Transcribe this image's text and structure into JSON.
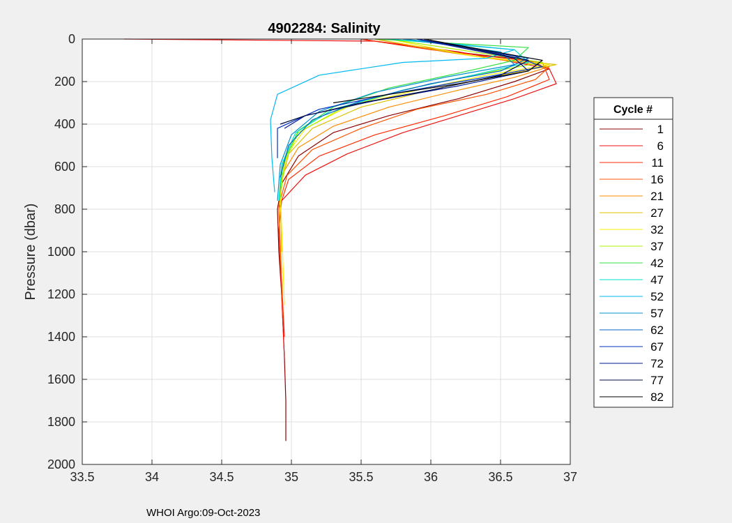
{
  "chart_data": {
    "type": "line",
    "title": "4902284:  Salinity",
    "xlabel": "",
    "ylabel": "Pressure (dbar)",
    "xlim": [
      33.5,
      37
    ],
    "ylim": [
      0,
      2000
    ],
    "y_reversed": true,
    "grid": true,
    "xticks": [
      "33.5",
      "34",
      "34.5",
      "35",
      "35.5",
      "36",
      "36.5",
      "37"
    ],
    "yticks": [
      "0",
      "200",
      "400",
      "600",
      "800",
      "1000",
      "1200",
      "1400",
      "1600",
      "1800",
      "2000"
    ],
    "legend": {
      "title": "Cycle #",
      "placement": "right-outside",
      "entries": [
        {
          "label": "1",
          "color": "#8b0000"
        },
        {
          "label": "6",
          "color": "#ee1111"
        },
        {
          "label": "11",
          "color": "#ff2a00"
        },
        {
          "label": "16",
          "color": "#ff5500"
        },
        {
          "label": "21",
          "color": "#ff8c00"
        },
        {
          "label": "27",
          "color": "#e0c000"
        },
        {
          "label": "32",
          "color": "#f5f000"
        },
        {
          "label": "37",
          "color": "#a8f000"
        },
        {
          "label": "42",
          "color": "#30e040"
        },
        {
          "label": "47",
          "color": "#00e0c8"
        },
        {
          "label": "52",
          "color": "#00b8f0"
        },
        {
          "label": "57",
          "color": "#0090d0"
        },
        {
          "label": "62",
          "color": "#0064c8"
        },
        {
          "label": "67",
          "color": "#0030c0"
        },
        {
          "label": "72",
          "color": "#001890"
        },
        {
          "label": "77",
          "color": "#000c40"
        },
        {
          "label": "82",
          "color": "#000000"
        }
      ]
    },
    "series": [
      {
        "color": "#8b0000",
        "x": [
          35.5,
          35.9,
          36.7,
          36.85,
          36.6,
          36.2,
          35.7,
          35.3,
          35.05,
          34.93,
          34.9,
          34.91,
          34.93,
          34.95,
          34.96,
          34.96
        ],
        "y": [
          0,
          40,
          100,
          140,
          200,
          280,
          360,
          440,
          550,
          680,
          800,
          1000,
          1200,
          1500,
          1700,
          1890
        ]
      },
      {
        "color": "#ee1111",
        "x": [
          33.8,
          35.6,
          36.2,
          36.85,
          36.9,
          36.6,
          36.2,
          35.8,
          35.4,
          35.1,
          34.93,
          34.91,
          34.93,
          34.95
        ],
        "y": [
          0,
          10,
          60,
          140,
          210,
          280,
          360,
          440,
          540,
          640,
          760,
          900,
          1200,
          1500
        ]
      },
      {
        "color": "#ff2a00",
        "x": [
          35.5,
          36.0,
          36.8,
          36.85,
          36.55,
          36.1,
          35.6,
          35.2,
          34.98,
          34.91,
          34.92,
          34.95
        ],
        "y": [
          0,
          50,
          110,
          190,
          270,
          360,
          450,
          550,
          660,
          800,
          1000,
          1400
        ]
      },
      {
        "color": "#ff5500",
        "x": [
          35.6,
          36.1,
          36.85,
          36.75,
          36.4,
          35.9,
          35.5,
          35.15,
          34.97,
          34.91,
          34.92,
          34.94
        ],
        "y": [
          0,
          60,
          130,
          190,
          260,
          330,
          420,
          520,
          640,
          780,
          1000,
          1300
        ]
      },
      {
        "color": "#ff8c00",
        "x": [
          35.6,
          36.2,
          36.85,
          36.6,
          36.2,
          35.7,
          35.3,
          35.05,
          34.93,
          34.91,
          34.93
        ],
        "y": [
          0,
          70,
          130,
          180,
          240,
          320,
          410,
          510,
          640,
          800,
          1100
        ]
      },
      {
        "color": "#e0c000",
        "x": [
          35.6,
          36.3,
          36.9,
          36.5,
          36.0,
          35.5,
          35.15,
          34.98,
          34.92,
          34.93
        ],
        "y": [
          0,
          80,
          120,
          170,
          240,
          320,
          420,
          540,
          700,
          1000
        ]
      },
      {
        "color": "#f5f000",
        "x": [
          35.7,
          36.3,
          36.85,
          36.4,
          35.9,
          35.4,
          35.1,
          34.97,
          34.92,
          34.95
        ],
        "y": [
          0,
          80,
          120,
          170,
          240,
          320,
          420,
          540,
          700,
          1250
        ]
      },
      {
        "color": "#a8f000",
        "x": [
          35.7,
          36.4,
          36.8,
          36.3,
          35.8,
          35.35,
          35.05,
          34.95,
          34.92
        ],
        "y": [
          0,
          70,
          110,
          170,
          240,
          330,
          440,
          580,
          750
        ]
      },
      {
        "color": "#30e040",
        "x": [
          35.6,
          36.7,
          36.6,
          36.2,
          35.7,
          35.3,
          35.05,
          34.94,
          34.91
        ],
        "y": [
          0,
          40,
          100,
          160,
          230,
          320,
          430,
          580,
          760
        ]
      },
      {
        "color": "#00e0c8",
        "x": [
          35.7,
          36.6,
          36.7,
          36.3,
          35.8,
          35.3,
          35.03,
          34.93,
          34.91
        ],
        "y": [
          0,
          50,
          110,
          170,
          240,
          330,
          440,
          590,
          760
        ]
      },
      {
        "color": "#00b8f0",
        "x": [
          35.8,
          36.6,
          36.4,
          35.8,
          35.2,
          34.9,
          34.85,
          34.86,
          34.88
        ],
        "y": [
          0,
          50,
          90,
          110,
          170,
          260,
          380,
          560,
          720
        ]
      },
      {
        "color": "#0090d0",
        "x": [
          35.8,
          36.5,
          36.6,
          36.1,
          35.6,
          35.2,
          35.0,
          34.92,
          34.9
        ],
        "y": [
          0,
          60,
          120,
          180,
          250,
          340,
          450,
          590,
          760
        ]
      },
      {
        "color": "#0064c8",
        "x": [
          35.9,
          36.7,
          36.5,
          36.0,
          35.5,
          35.15,
          34.98,
          34.92
        ],
        "y": [
          0,
          90,
          150,
          210,
          290,
          380,
          500,
          650
        ]
      },
      {
        "color": "#0030c0",
        "x": [
          35.9,
          36.6,
          36.8,
          36.3,
          35.7,
          35.2,
          34.9,
          34.9
        ],
        "y": [
          0,
          80,
          130,
          190,
          260,
          330,
          420,
          560
        ]
      },
      {
        "color": "#001890",
        "x": [
          35.9,
          36.6,
          36.7,
          36.2,
          35.6,
          35.1,
          34.95
        ],
        "y": [
          0,
          90,
          150,
          220,
          290,
          360,
          420
        ]
      },
      {
        "color": "#000c40",
        "x": [
          35.95,
          36.7,
          36.5,
          36.0,
          35.5,
          35.1,
          34.92
        ],
        "y": [
          0,
          100,
          170,
          240,
          300,
          360,
          400
        ]
      },
      {
        "color": "#000000",
        "x": [
          35.95,
          36.8,
          36.7,
          36.2,
          35.7,
          35.3
        ],
        "y": [
          0,
          100,
          150,
          210,
          260,
          300
        ]
      }
    ]
  },
  "footer": "WHOI Argo:09-Oct-2023"
}
